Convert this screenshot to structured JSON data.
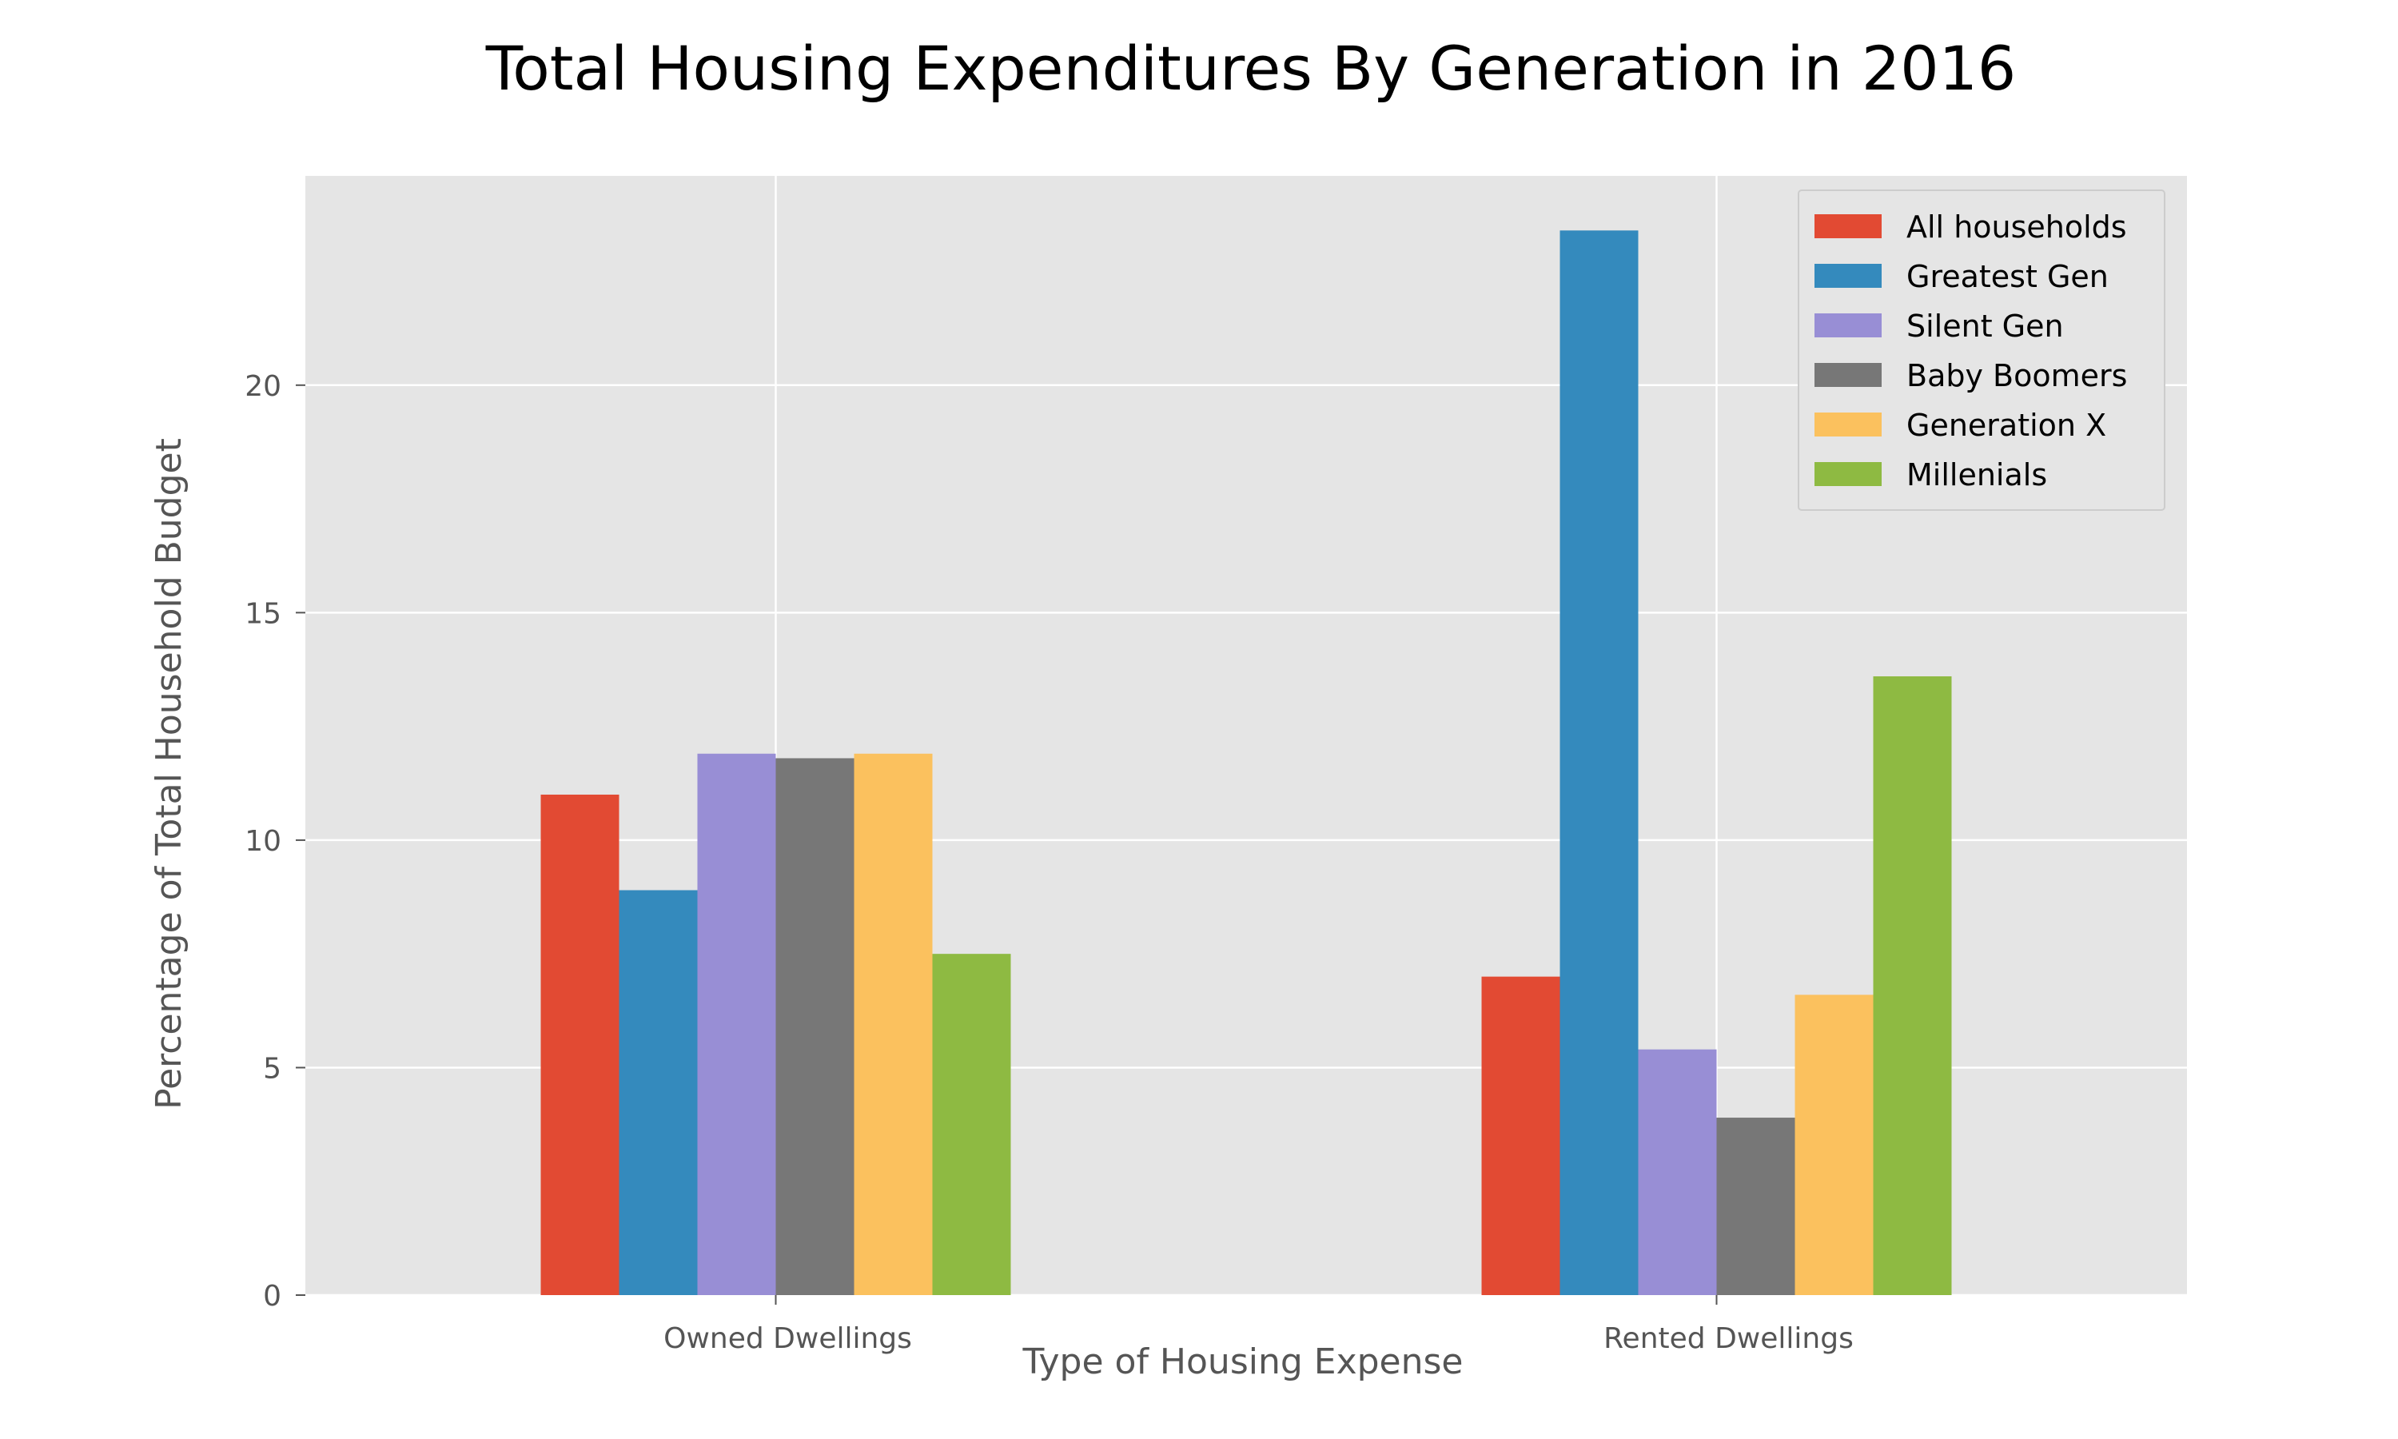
{
  "chart_data": {
    "type": "bar",
    "title": "Total Housing Expenditures By Generation in 2016",
    "xlabel": "Type of Housing Expense",
    "ylabel": "Percentage of Total Household Budget",
    "categories": [
      "Owned Dwellings",
      "Rented Dwellings"
    ],
    "series": [
      {
        "name": "All households",
        "color": "#E24A33",
        "values": [
          11.0,
          7.0
        ]
      },
      {
        "name": "Greatest Gen",
        "color": "#348ABD",
        "values": [
          8.9,
          23.4
        ]
      },
      {
        "name": "Silent Gen",
        "color": "#988ED5",
        "values": [
          11.9,
          5.4
        ]
      },
      {
        "name": "Baby Boomers",
        "color": "#777777",
        "values": [
          11.8,
          3.9
        ]
      },
      {
        "name": "Generation X",
        "color": "#FBC15E",
        "values": [
          11.9,
          6.6
        ]
      },
      {
        "name": "Millenials",
        "color": "#8EBA42",
        "values": [
          7.5,
          13.6
        ]
      }
    ],
    "ylim": [
      0,
      24.6
    ],
    "yticks": [
      0,
      5,
      10,
      15,
      20
    ],
    "ytick_labels": [
      "0",
      "5",
      "10",
      "15",
      "20"
    ],
    "grid": true,
    "legend_position": "top-right",
    "plot_background": "#E5E5E5",
    "grid_color": "#FFFFFF"
  }
}
